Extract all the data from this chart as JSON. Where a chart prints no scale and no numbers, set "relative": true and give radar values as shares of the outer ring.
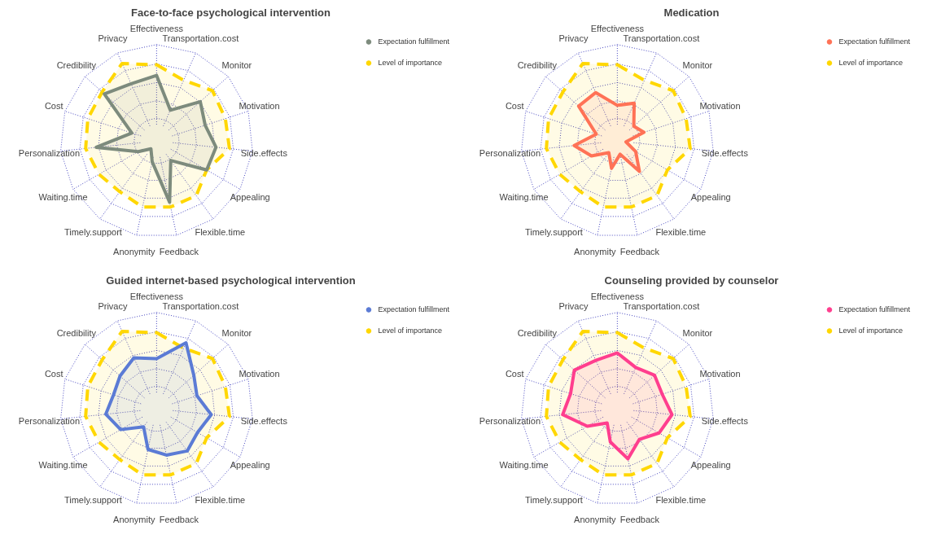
{
  "chart_data": [
    {
      "type": "radar",
      "title": "Face-to-face psychological intervention",
      "relative": true,
      "grid": true,
      "legend": "right",
      "categories": [
        "Effectiveness",
        "Transportation.cost",
        "Monitor",
        "Motivation",
        "Side.effects",
        "Appealing",
        "Flexible.time",
        "Feedback",
        "Anonymity",
        "Timely.support",
        "Waiting.time",
        "Personalization",
        "Cost",
        "Credibility",
        "Privacy"
      ],
      "series": [
        {
          "name": "Expectation fulfillment",
          "color": "#7d8b7d",
          "line_style": "solid",
          "values": [
            0.68,
            0.35,
            0.61,
            0.53,
            0.62,
            0.6,
            0.25,
            0.65,
            0.22,
            0.1,
            0.22,
            0.63,
            0.27,
            0.73,
            0.65
          ]
        },
        {
          "name": "Level of importance",
          "color": "#ffd700",
          "line_style": "dashed",
          "values": [
            0.79,
            0.69,
            0.78,
            0.75,
            0.76,
            0.6,
            0.7,
            0.7,
            0.7,
            0.65,
            0.69,
            0.74,
            0.75,
            0.76,
            0.88
          ]
        }
      ]
    },
    {
      "type": "radar",
      "title": "Medication",
      "relative": true,
      "grid": true,
      "legend": "right",
      "categories": [
        "Effectiveness",
        "Transportation.cost",
        "Monitor",
        "Motivation",
        "Side.effects",
        "Appealing",
        "Flexible.time",
        "Feedback",
        "Anonymity",
        "Timely.support",
        "Waiting.time",
        "Personalization",
        "Cost",
        "Credibility",
        "Privacy"
      ],
      "series": [
        {
          "name": "Expectation fulfillment",
          "color": "#ff7256",
          "line_style": "solid",
          "values": [
            0.37,
            0.43,
            0.23,
            0.29,
            0.09,
            0.22,
            0.39,
            0.14,
            0.29,
            0.15,
            0.31,
            0.45,
            0.23,
            0.54,
            0.55
          ]
        },
        {
          "name": "Level of importance",
          "color": "#ffd700",
          "line_style": "dashed",
          "values": [
            0.79,
            0.69,
            0.78,
            0.75,
            0.76,
            0.6,
            0.7,
            0.7,
            0.7,
            0.65,
            0.69,
            0.74,
            0.75,
            0.76,
            0.88
          ]
        }
      ]
    },
    {
      "type": "radar",
      "title": "Guided internet-based psychological intervention",
      "relative": true,
      "grid": true,
      "legend": "right",
      "categories": [
        "Effectiveness",
        "Transportation.cost",
        "Monitor",
        "Motivation",
        "Side.effects",
        "Appealing",
        "Flexible.time",
        "Feedback",
        "Anonymity",
        "Timely.support",
        "Waiting.time",
        "Personalization",
        "Cost",
        "Credibility",
        "Privacy"
      ],
      "series": [
        {
          "name": "Expectation fulfillment",
          "color": "#5b7bd5",
          "line_style": "solid",
          "values": [
            0.52,
            0.75,
            0.52,
            0.44,
            0.57,
            0.49,
            0.54,
            0.49,
            0.43,
            0.23,
            0.43,
            0.53,
            0.47,
            0.51,
            0.58
          ]
        },
        {
          "name": "Level of importance",
          "color": "#ffd700",
          "line_style": "dashed",
          "values": [
            0.79,
            0.69,
            0.78,
            0.75,
            0.76,
            0.6,
            0.7,
            0.7,
            0.7,
            0.65,
            0.69,
            0.74,
            0.75,
            0.76,
            0.88
          ]
        }
      ]
    },
    {
      "type": "radar",
      "title": "Counseling provided by counselor",
      "relative": true,
      "grid": true,
      "legend": "right",
      "categories": [
        "Effectiveness",
        "Transportation.cost",
        "Monitor",
        "Motivation",
        "Side.effects",
        "Appealing",
        "Flexible.time",
        "Feedback",
        "Anonymity",
        "Timely.support",
        "Waiting.time",
        "Personalization",
        "Cost",
        "Credibility",
        "Privacy"
      ],
      "series": [
        {
          "name": "Expectation fulfillment",
          "color": "#ff3e8e",
          "line_style": "solid",
          "values": [
            0.58,
            0.47,
            0.52,
            0.49,
            0.57,
            0.5,
            0.39,
            0.53,
            0.35,
            0.18,
            0.36,
            0.57,
            0.51,
            0.6,
            0.55
          ]
        },
        {
          "name": "Level of importance",
          "color": "#ffd700",
          "line_style": "dashed",
          "values": [
            0.79,
            0.69,
            0.78,
            0.75,
            0.76,
            0.6,
            0.7,
            0.7,
            0.7,
            0.65,
            0.69,
            0.74,
            0.75,
            0.76,
            0.88
          ]
        }
      ]
    }
  ]
}
